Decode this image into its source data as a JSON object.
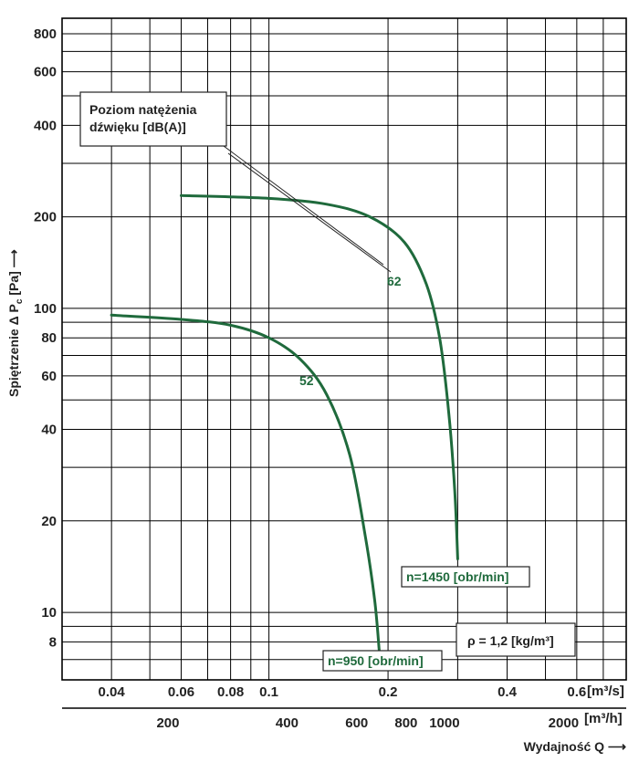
{
  "chart_data": {
    "type": "line",
    "title": "",
    "ylabel_parts": {
      "prefix": "Spiętrzenie  Δ P",
      "sub": "c",
      "suffix": " [Pa] ⟶"
    },
    "xlabel": "Wydajność Q ⟶",
    "x_scale": "log",
    "y_scale": "log",
    "xlim": [
      0.03,
      0.8
    ],
    "ylim": [
      6,
      900
    ],
    "grid": true,
    "x_ticks_m3s": [
      {
        "v": 0.04,
        "label": "0.04"
      },
      {
        "v": 0.06,
        "label": "0.06"
      },
      {
        "v": 0.08,
        "label": "0.08"
      },
      {
        "v": 0.1,
        "label": "0.1"
      },
      {
        "v": 0.2,
        "label": "0.2"
      },
      {
        "v": 0.4,
        "label": "0.4"
      },
      {
        "v": 0.6,
        "label": "0.6"
      }
    ],
    "x_unit_m3s": "[m³/s]",
    "x_ticks_m3h": [
      {
        "v": 200,
        "label": "200"
      },
      {
        "v": 400,
        "label": "400"
      },
      {
        "v": 600,
        "label": "600"
      },
      {
        "v": 800,
        "label": "800"
      },
      {
        "v": 1000,
        "label": "1000"
      },
      {
        "v": 2000,
        "label": "2000"
      }
    ],
    "x_unit_m3h": "[m³/h]",
    "y_ticks": [
      {
        "v": 8,
        "label": "8"
      },
      {
        "v": 10,
        "label": "10"
      },
      {
        "v": 20,
        "label": "20"
      },
      {
        "v": 40,
        "label": "40"
      },
      {
        "v": 60,
        "label": "60"
      },
      {
        "v": 80,
        "label": "80"
      },
      {
        "v": 100,
        "label": "100"
      },
      {
        "v": 200,
        "label": "200"
      },
      {
        "v": 400,
        "label": "400"
      },
      {
        "v": 600,
        "label": "600"
      },
      {
        "v": 800,
        "label": "800"
      }
    ],
    "series": [
      {
        "name": "n=950 [obr/min]",
        "sound_level": "52",
        "color": "#1f6a3c",
        "x": [
          0.04,
          0.06,
          0.08,
          0.1,
          0.12,
          0.14,
          0.16,
          0.175,
          0.185,
          0.19
        ],
        "y": [
          95,
          92,
          88,
          80,
          68,
          52,
          33,
          18,
          11,
          7.5
        ]
      },
      {
        "name": "n=1450 [obr/min]",
        "sound_level": "62",
        "color": "#1f6a3c",
        "x": [
          0.06,
          0.1,
          0.14,
          0.18,
          0.22,
          0.25,
          0.27,
          0.285,
          0.295,
          0.3
        ],
        "y": [
          235,
          230,
          220,
          200,
          165,
          120,
          80,
          45,
          25,
          15
        ]
      }
    ],
    "annotations": {
      "sound_box": [
        "Poziom natężenia",
        "dźwięku [dB(A)]"
      ],
      "density": "ρ = 1,2 [kg/m³]"
    }
  }
}
